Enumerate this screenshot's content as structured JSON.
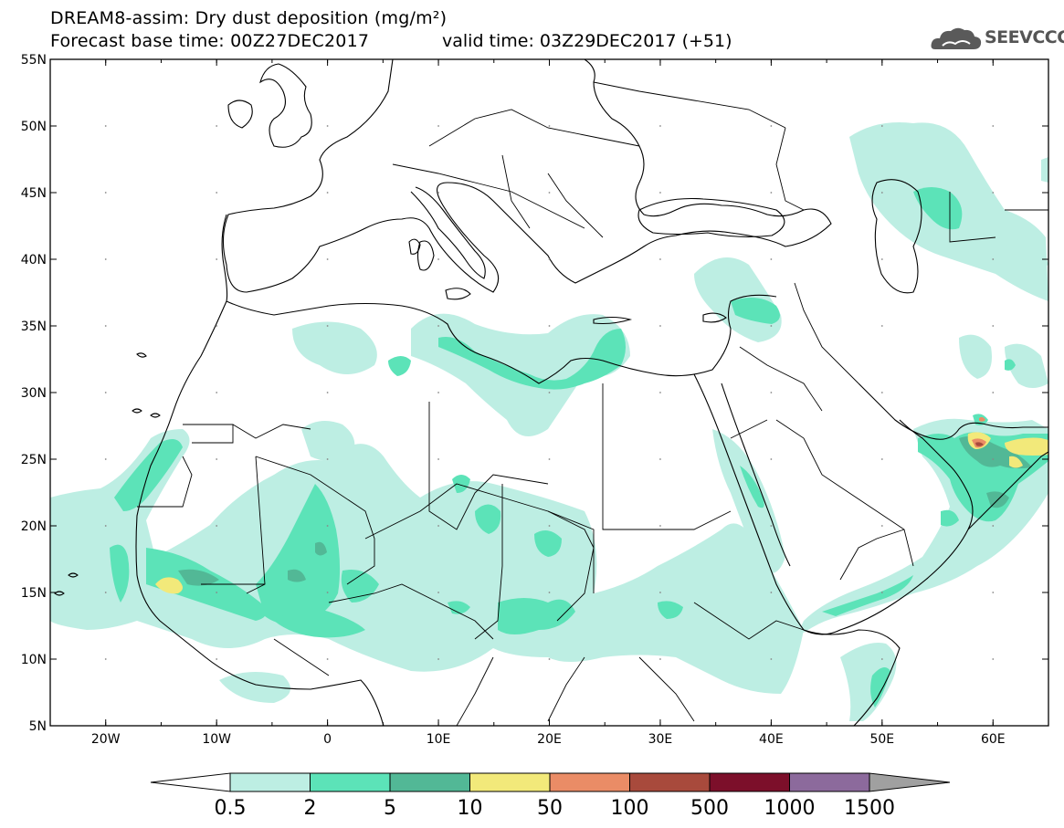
{
  "header": {
    "title": "DREAM8-assim: Dry dust deposition (mg/m²)",
    "base_time": "Forecast base time: 00Z27DEC2017",
    "valid_time": "valid time: 03Z29DEC2017 (+51)",
    "logo_text": "SEEVCCC"
  },
  "map": {
    "lon_range": [
      -25,
      65
    ],
    "lat_range": [
      5,
      55
    ],
    "lat_labels": [
      {
        "lat": 55,
        "text": "55N"
      },
      {
        "lat": 50,
        "text": "50N"
      },
      {
        "lat": 45,
        "text": "45N"
      },
      {
        "lat": 40,
        "text": "40N"
      },
      {
        "lat": 35,
        "text": "35N"
      },
      {
        "lat": 30,
        "text": "30N"
      },
      {
        "lat": 25,
        "text": "25N"
      },
      {
        "lat": 20,
        "text": "20N"
      },
      {
        "lat": 15,
        "text": "15N"
      },
      {
        "lat": 10,
        "text": "10N"
      },
      {
        "lat": 5,
        "text": "5N"
      }
    ],
    "lon_labels": [
      {
        "lon": -20,
        "text": "20W"
      },
      {
        "lon": -10,
        "text": "10W"
      },
      {
        "lon": 0,
        "text": "0"
      },
      {
        "lon": 10,
        "text": "10E"
      },
      {
        "lon": 20,
        "text": "20E"
      },
      {
        "lon": 30,
        "text": "30E"
      },
      {
        "lon": 40,
        "text": "40E"
      },
      {
        "lon": 50,
        "text": "50E"
      },
      {
        "lon": 60,
        "text": "60E"
      }
    ]
  },
  "colorbar": {
    "levels": [
      "0.5",
      "2",
      "5",
      "10",
      "50",
      "100",
      "500",
      "1000",
      "1500"
    ],
    "colors": [
      "#bdeee3",
      "#5ce3b8",
      "#52b896",
      "#f2e97a",
      "#ea8c66",
      "#a84a3c",
      "#7c0f2a",
      "#8c6a9c"
    ],
    "under_color": "#ffffff",
    "over_color": "#a0a0a0"
  }
}
